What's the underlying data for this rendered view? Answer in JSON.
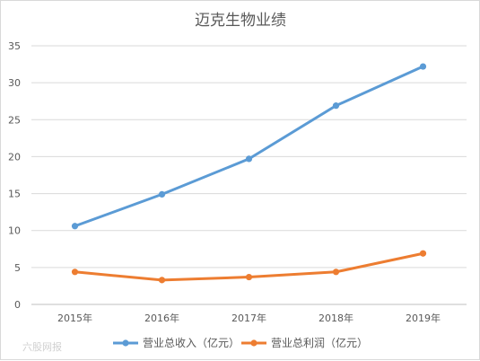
{
  "chart_data": {
    "type": "line",
    "title": "迈克生物业绩",
    "categories": [
      "2015年",
      "2016年",
      "2017年",
      "2018年",
      "2019年"
    ],
    "series": [
      {
        "name": "营业总收入（亿元）",
        "color": "#5b9bd5",
        "values": [
          10.6,
          14.9,
          19.7,
          26.9,
          32.2
        ]
      },
      {
        "name": "营业总利润（亿元）",
        "color": "#ed7d31",
        "values": [
          4.4,
          3.3,
          3.7,
          4.4,
          6.9
        ]
      }
    ],
    "yticks": [
      0,
      5,
      10,
      15,
      20,
      25,
      30,
      35
    ],
    "ylim": [
      0,
      35
    ],
    "grid": true,
    "legend_position": "bottom"
  },
  "watermark": "六股网报"
}
